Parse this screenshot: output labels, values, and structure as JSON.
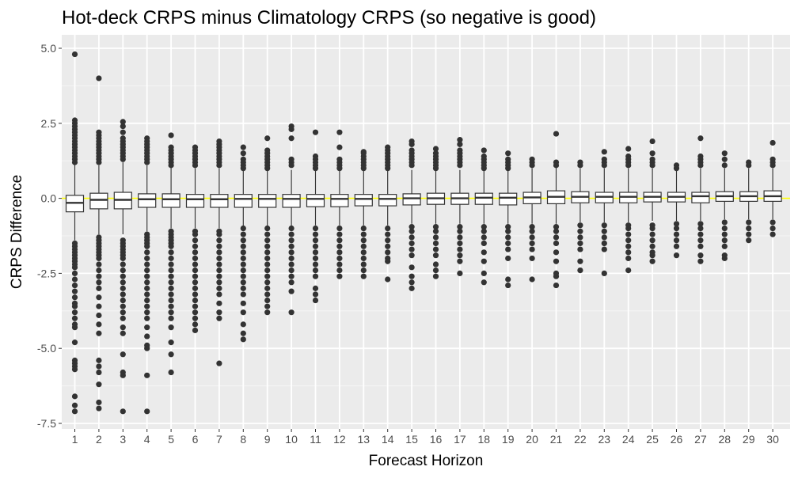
{
  "chart_data": {
    "type": "box",
    "title": "Hot-deck CRPS minus Climatology CRPS (so negative is good)",
    "xlabel": "Forecast Horizon",
    "ylabel": "CRPS Difference",
    "ylim": [
      -7.5,
      5.0
    ],
    "yticks": [
      5.0,
      2.5,
      0.0,
      -2.5,
      -5.0,
      -7.5
    ],
    "ytick_labels": [
      "5.0",
      "2.5",
      "0.0",
      "-2.5",
      "-5.0",
      "-7.5"
    ],
    "reference_line": {
      "y": 0.0,
      "color": "#ffff00"
    },
    "grid": true,
    "panel_background": "#ebebeb",
    "box_fill": "#ffffff",
    "box_stroke": "#333333",
    "categories": [
      "1",
      "2",
      "3",
      "4",
      "5",
      "6",
      "7",
      "8",
      "9",
      "10",
      "11",
      "12",
      "13",
      "14",
      "15",
      "16",
      "17",
      "18",
      "19",
      "20",
      "21",
      "22",
      "23",
      "24",
      "25",
      "26",
      "27",
      "28",
      "29",
      "30"
    ],
    "boxes": [
      {
        "q1": -0.45,
        "median": -0.15,
        "q3": 0.1,
        "whisker_low": -1.4,
        "whisker_high": 1.15,
        "outliers": [
          4.8,
          2.6,
          2.5,
          2.4,
          2.3,
          2.2,
          2.1,
          2.0,
          1.9,
          1.8,
          1.7,
          1.6,
          1.5,
          1.4,
          1.3,
          1.2,
          -1.5,
          -1.6,
          -1.7,
          -1.8,
          -1.9,
          -2.0,
          -2.1,
          -2.2,
          -2.3,
          -2.5,
          -2.7,
          -2.9,
          -3.1,
          -3.3,
          -3.5,
          -3.6,
          -3.8,
          -4.0,
          -4.2,
          -4.3,
          -4.8,
          -5.4,
          -5.5,
          -5.6,
          -5.7,
          -6.6,
          -6.9,
          -7.1
        ]
      },
      {
        "q1": -0.35,
        "median": -0.05,
        "q3": 0.17,
        "whisker_low": -1.2,
        "whisker_high": 1.1,
        "outliers": [
          4.0,
          2.2,
          2.1,
          2.0,
          1.9,
          1.8,
          1.7,
          1.6,
          1.5,
          1.4,
          1.3,
          1.2,
          -1.3,
          -1.4,
          -1.5,
          -1.6,
          -1.7,
          -1.8,
          -1.9,
          -2.0,
          -2.2,
          -2.4,
          -2.6,
          -2.8,
          -3.0,
          -3.3,
          -3.6,
          -3.9,
          -4.2,
          -4.5,
          -5.4,
          -5.6,
          -5.8,
          -6.2,
          -6.8,
          -7.0
        ]
      },
      {
        "q1": -0.35,
        "median": -0.05,
        "q3": 0.2,
        "whisker_low": -1.2,
        "whisker_high": 1.2,
        "outliers": [
          2.55,
          2.4,
          2.2,
          2.0,
          1.9,
          1.8,
          1.7,
          1.6,
          1.5,
          1.4,
          1.3,
          -1.4,
          -1.5,
          -1.6,
          -1.7,
          -1.8,
          -1.9,
          -2.0,
          -2.2,
          -2.4,
          -2.6,
          -2.8,
          -3.0,
          -3.2,
          -3.4,
          -3.6,
          -3.8,
          -4.0,
          -4.3,
          -4.5,
          -5.2,
          -5.8,
          -5.9,
          -7.1
        ]
      },
      {
        "q1": -0.3,
        "median": -0.03,
        "q3": 0.15,
        "whisker_low": -1.1,
        "whisker_high": 1.1,
        "outliers": [
          2.0,
          1.9,
          1.8,
          1.7,
          1.6,
          1.5,
          1.4,
          1.3,
          1.2,
          -1.2,
          -1.3,
          -1.4,
          -1.5,
          -1.6,
          -1.8,
          -2.0,
          -2.2,
          -2.4,
          -2.6,
          -2.8,
          -3.0,
          -3.2,
          -3.4,
          -3.6,
          -3.8,
          -4.0,
          -4.3,
          -4.6,
          -4.9,
          -5.0,
          -5.9,
          -7.1
        ]
      },
      {
        "q1": -0.3,
        "median": -0.03,
        "q3": 0.15,
        "whisker_low": -1.0,
        "whisker_high": 1.05,
        "outliers": [
          2.1,
          1.7,
          1.6,
          1.5,
          1.4,
          1.3,
          1.2,
          1.1,
          -1.1,
          -1.2,
          -1.3,
          -1.4,
          -1.5,
          -1.6,
          -1.8,
          -2.0,
          -2.2,
          -2.4,
          -2.6,
          -2.8,
          -3.0,
          -3.2,
          -3.4,
          -3.6,
          -3.8,
          -4.0,
          -4.3,
          -4.8,
          -5.2,
          -5.8
        ]
      },
      {
        "q1": -0.3,
        "median": -0.03,
        "q3": 0.13,
        "whisker_low": -1.0,
        "whisker_high": 1.0,
        "outliers": [
          1.7,
          1.6,
          1.5,
          1.4,
          1.3,
          1.2,
          1.1,
          -1.1,
          -1.2,
          -1.4,
          -1.6,
          -1.8,
          -2.0,
          -2.2,
          -2.4,
          -2.6,
          -2.8,
          -3.0,
          -3.2,
          -3.4,
          -3.6,
          -3.8,
          -4.0,
          -4.2,
          -4.4
        ]
      },
      {
        "q1": -0.3,
        "median": -0.03,
        "q3": 0.13,
        "whisker_low": -1.0,
        "whisker_high": 1.0,
        "outliers": [
          1.9,
          1.8,
          1.7,
          1.6,
          1.5,
          1.4,
          1.3,
          1.2,
          1.1,
          -1.1,
          -1.2,
          -1.4,
          -1.6,
          -1.8,
          -2.0,
          -2.2,
          -2.4,
          -2.6,
          -2.8,
          -3.0,
          -3.2,
          -3.5,
          -3.8,
          -4.0,
          -5.5
        ]
      },
      {
        "q1": -0.3,
        "median": -0.02,
        "q3": 0.13,
        "whisker_low": -0.95,
        "whisker_high": 0.95,
        "outliers": [
          1.7,
          1.5,
          1.3,
          1.2,
          1.1,
          1.0,
          -1.0,
          -1.2,
          -1.4,
          -1.6,
          -1.8,
          -2.0,
          -2.2,
          -2.4,
          -2.6,
          -2.8,
          -3.0,
          -3.2,
          -3.5,
          -3.8,
          -4.2,
          -4.5,
          -4.7
        ]
      },
      {
        "q1": -0.3,
        "median": -0.02,
        "q3": 0.13,
        "whisker_low": -0.95,
        "whisker_high": 0.95,
        "outliers": [
          2.0,
          1.6,
          1.5,
          1.4,
          1.3,
          1.2,
          1.1,
          1.0,
          -1.0,
          -1.2,
          -1.4,
          -1.6,
          -1.8,
          -2.0,
          -2.2,
          -2.4,
          -2.6,
          -2.8,
          -3.0,
          -3.2,
          -3.4,
          -3.6,
          -3.8
        ]
      },
      {
        "q1": -0.3,
        "median": -0.02,
        "q3": 0.13,
        "whisker_low": -0.95,
        "whisker_high": 0.95,
        "outliers": [
          2.4,
          2.3,
          2.0,
          1.3,
          1.2,
          1.1,
          -1.0,
          -1.2,
          -1.4,
          -1.6,
          -1.8,
          -2.0,
          -2.2,
          -2.4,
          -2.6,
          -2.8,
          -3.1,
          -3.8
        ]
      },
      {
        "q1": -0.28,
        "median": -0.02,
        "q3": 0.13,
        "whisker_low": -0.9,
        "whisker_high": 0.95,
        "outliers": [
          2.2,
          1.4,
          1.3,
          1.2,
          1.1,
          1.0,
          -1.0,
          -1.2,
          -1.4,
          -1.6,
          -1.8,
          -2.0,
          -2.2,
          -2.4,
          -2.6,
          -3.0,
          -3.2,
          -3.4
        ]
      },
      {
        "q1": -0.28,
        "median": -0.02,
        "q3": 0.13,
        "whisker_low": -0.9,
        "whisker_high": 0.95,
        "outliers": [
          2.2,
          1.7,
          1.3,
          1.2,
          1.1,
          1.0,
          -1.0,
          -1.2,
          -1.4,
          -1.6,
          -1.8,
          -2.0,
          -2.2,
          -2.4,
          -2.6
        ]
      },
      {
        "q1": -0.25,
        "median": -0.02,
        "q3": 0.13,
        "whisker_low": -0.9,
        "whisker_high": 0.95,
        "outliers": [
          1.55,
          1.5,
          1.4,
          1.3,
          1.2,
          1.1,
          1.0,
          -1.0,
          -1.2,
          -1.4,
          -1.6,
          -1.8,
          -2.0,
          -2.2,
          -2.4,
          -2.6
        ]
      },
      {
        "q1": -0.25,
        "median": -0.02,
        "q3": 0.13,
        "whisker_low": -0.9,
        "whisker_high": 0.95,
        "outliers": [
          1.7,
          1.6,
          1.5,
          1.4,
          1.3,
          1.2,
          1.1,
          1.0,
          -1.0,
          -1.2,
          -1.4,
          -1.6,
          -1.8,
          -2.0,
          -2.1,
          -2.7
        ]
      },
      {
        "q1": -0.22,
        "median": 0.0,
        "q3": 0.15,
        "whisker_low": -0.85,
        "whisker_high": 0.95,
        "outliers": [
          1.9,
          1.8,
          1.6,
          1.5,
          1.4,
          1.3,
          1.2,
          1.1,
          -0.95,
          -1.1,
          -1.3,
          -1.5,
          -1.7,
          -1.9,
          -2.3,
          -2.6,
          -2.8,
          -3.0
        ]
      },
      {
        "q1": -0.2,
        "median": 0.0,
        "q3": 0.17,
        "whisker_low": -0.85,
        "whisker_high": 0.95,
        "outliers": [
          1.65,
          1.5,
          1.4,
          1.3,
          1.2,
          1.1,
          1.0,
          -0.95,
          -1.1,
          -1.3,
          -1.5,
          -1.7,
          -1.9,
          -2.2,
          -2.4,
          -2.6
        ]
      },
      {
        "q1": -0.2,
        "median": 0.0,
        "q3": 0.17,
        "whisker_low": -0.85,
        "whisker_high": 0.95,
        "outliers": [
          1.95,
          1.8,
          1.6,
          1.5,
          1.4,
          1.3,
          1.2,
          1.1,
          -0.95,
          -1.1,
          -1.3,
          -1.5,
          -1.7,
          -1.9,
          -2.1,
          -2.5
        ]
      },
      {
        "q1": -0.2,
        "median": 0.02,
        "q3": 0.17,
        "whisker_low": -0.85,
        "whisker_high": 0.95,
        "outliers": [
          1.6,
          1.4,
          1.3,
          1.2,
          1.1,
          1.0,
          -0.95,
          -1.1,
          -1.3,
          -1.5,
          -1.8,
          -2.1,
          -2.5,
          -2.8
        ]
      },
      {
        "q1": -0.22,
        "median": 0.02,
        "q3": 0.17,
        "whisker_low": -0.85,
        "whisker_high": 0.95,
        "outliers": [
          1.5,
          1.3,
          1.2,
          1.1,
          1.0,
          -0.95,
          -1.1,
          -1.3,
          -1.5,
          -1.7,
          -2.0,
          -2.7,
          -2.9
        ]
      },
      {
        "q1": -0.18,
        "median": 0.03,
        "q3": 0.2,
        "whisker_low": -0.85,
        "whisker_high": 1.0,
        "outliers": [
          1.3,
          1.2,
          1.1,
          -0.95,
          -1.1,
          -1.3,
          -1.5,
          -1.7,
          -2.0,
          -2.7
        ]
      },
      {
        "q1": -0.18,
        "median": 0.05,
        "q3": 0.25,
        "whisker_low": -0.85,
        "whisker_high": 1.05,
        "outliers": [
          2.15,
          1.2,
          1.1,
          -0.95,
          -1.1,
          -1.3,
          -1.5,
          -1.8,
          -2.1,
          -2.5,
          -2.6,
          -2.9
        ]
      },
      {
        "q1": -0.15,
        "median": 0.05,
        "q3": 0.22,
        "whisker_low": -0.8,
        "whisker_high": 1.0,
        "outliers": [
          1.2,
          1.1,
          -0.9,
          -1.1,
          -1.3,
          -1.5,
          -1.7,
          -2.1,
          -2.4
        ]
      },
      {
        "q1": -0.15,
        "median": 0.05,
        "q3": 0.2,
        "whisker_low": -0.8,
        "whisker_high": 1.0,
        "outliers": [
          1.55,
          1.3,
          1.2,
          1.1,
          -0.9,
          -1.1,
          -1.3,
          -1.5,
          -1.7,
          -2.5
        ]
      },
      {
        "q1": -0.15,
        "median": 0.05,
        "q3": 0.2,
        "whisker_low": -0.8,
        "whisker_high": 1.0,
        "outliers": [
          1.65,
          1.4,
          1.3,
          1.2,
          1.1,
          -0.9,
          -1.0,
          -1.2,
          -1.4,
          -1.6,
          -1.8,
          -2.0,
          -2.4
        ]
      },
      {
        "q1": -0.12,
        "median": 0.05,
        "q3": 0.2,
        "whisker_low": -0.75,
        "whisker_high": 1.0,
        "outliers": [
          1.9,
          1.5,
          1.3,
          1.2,
          1.1,
          -0.9,
          -1.0,
          -1.2,
          -1.4,
          -1.6,
          -1.8,
          -1.9,
          -2.1
        ]
      },
      {
        "q1": -0.12,
        "median": 0.05,
        "q3": 0.2,
        "whisker_low": -0.75,
        "whisker_high": 1.0,
        "outliers": [
          1.1,
          1.0,
          -0.85,
          -1.0,
          -1.2,
          -1.4,
          -1.6,
          -1.9
        ]
      },
      {
        "q1": -0.15,
        "median": 0.07,
        "q3": 0.2,
        "whisker_low": -0.75,
        "whisker_high": 1.0,
        "outliers": [
          2.0,
          1.4,
          1.3,
          1.2,
          1.1,
          -0.85,
          -1.0,
          -1.2,
          -1.4,
          -1.6,
          -1.9,
          -2.1
        ]
      },
      {
        "q1": -0.1,
        "median": 0.07,
        "q3": 0.22,
        "whisker_low": -0.7,
        "whisker_high": 1.0,
        "outliers": [
          1.5,
          1.3,
          1.1,
          -0.8,
          -1.0,
          -1.2,
          -1.4,
          -1.6,
          -1.9,
          -2.0
        ]
      },
      {
        "q1": -0.1,
        "median": 0.07,
        "q3": 0.22,
        "whisker_low": -0.7,
        "whisker_high": 1.0,
        "outliers": [
          1.2,
          1.1,
          -0.8,
          -1.0,
          -1.2,
          -1.4
        ]
      },
      {
        "q1": -0.1,
        "median": 0.07,
        "q3": 0.25,
        "whisker_low": -0.7,
        "whisker_high": 1.0,
        "outliers": [
          1.85,
          1.3,
          1.2,
          1.1,
          -0.8,
          -1.0,
          -1.2
        ]
      }
    ]
  }
}
